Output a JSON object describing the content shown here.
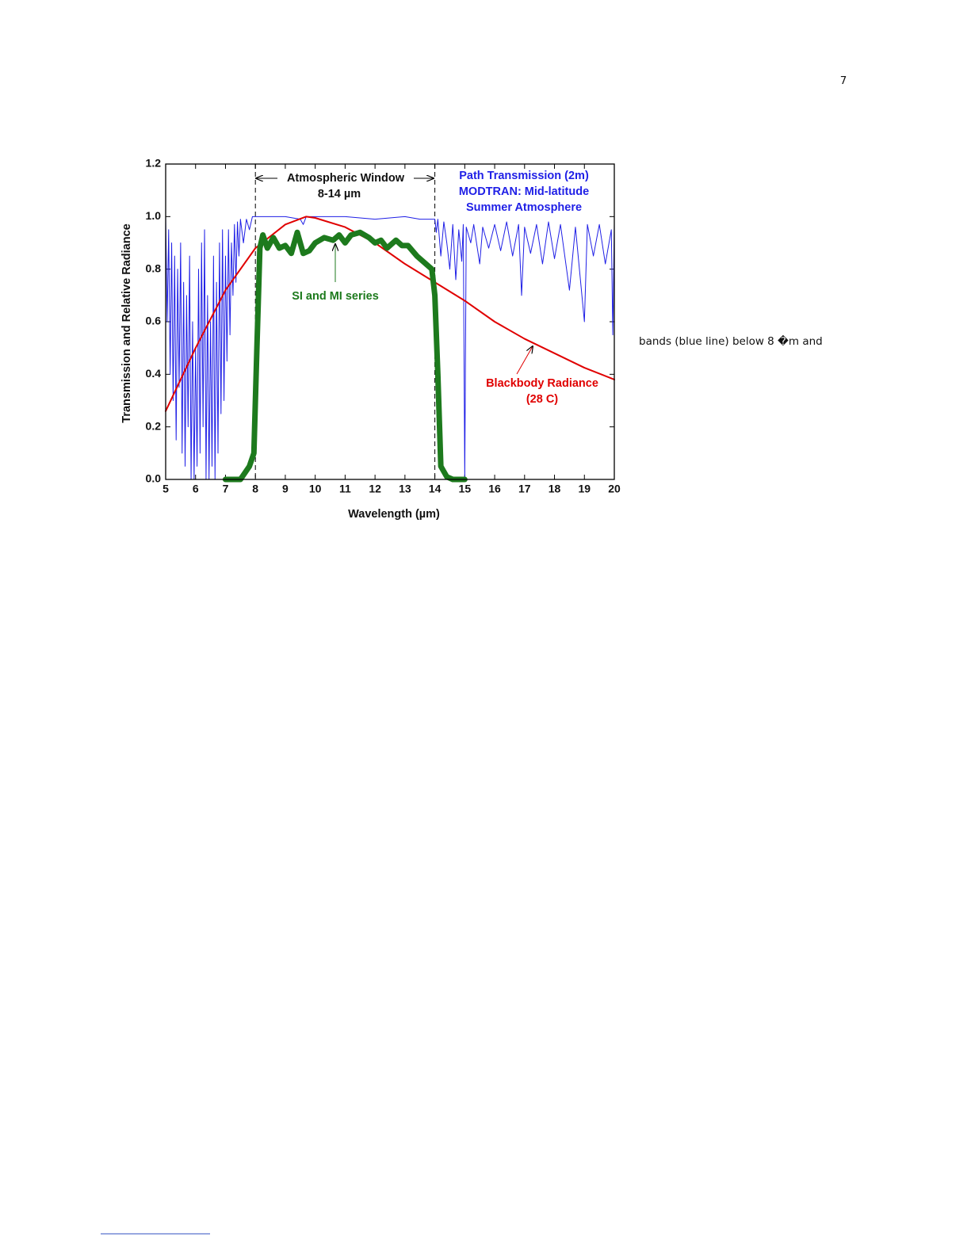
{
  "page_number": "7",
  "body_text": "bands (blue line) below 8 �m and",
  "chart_data": {
    "type": "line",
    "xlabel": "Wavelength (µm)",
    "ylabel": "Transmission and Relative Radiance",
    "annotations": [
      "Atmospheric Window",
      "8-14 µm",
      "Path Transmission (2m)",
      "MODTRAN: Mid-latitude",
      "Summer Atmosphere",
      "SI and MI series",
      "Blackbody Radiance",
      "(28 C)"
    ],
    "vlines": [
      8,
      14
    ],
    "xlim": [
      5,
      20
    ],
    "ylim": [
      0,
      1.2
    ],
    "xticks": [
      5,
      6,
      7,
      8,
      9,
      10,
      11,
      12,
      13,
      14,
      15,
      16,
      17,
      18,
      19,
      20
    ],
    "yticks": [
      {
        "value": 0,
        "label": "0.0"
      },
      0.2,
      0.4,
      0.6,
      0.8,
      {
        "value": 1,
        "label": "1.0"
      },
      1.2
    ],
    "grid": false,
    "series": [
      {
        "name": "Path Transmission (2m)",
        "color": "#1f1fe6",
        "width": 1,
        "x": [
          5.0,
          5.05,
          5.1,
          5.15,
          5.2,
          5.25,
          5.3,
          5.35,
          5.4,
          5.45,
          5.5,
          5.55,
          5.6,
          5.65,
          5.7,
          5.75,
          5.8,
          5.85,
          5.9,
          5.95,
          6.0,
          6.05,
          6.1,
          6.15,
          6.2,
          6.25,
          6.3,
          6.35,
          6.4,
          6.45,
          6.5,
          6.55,
          6.6,
          6.65,
          6.7,
          6.75,
          6.8,
          6.85,
          6.9,
          6.95,
          7.0,
          7.05,
          7.1,
          7.15,
          7.2,
          7.25,
          7.3,
          7.35,
          7.4,
          7.45,
          7.5,
          7.6,
          7.7,
          7.8,
          7.9,
          8.0,
          8.5,
          9.0,
          9.5,
          9.6,
          9.7,
          10,
          11,
          12,
          13,
          13.5,
          14.0,
          14.05,
          14.1,
          14.2,
          14.3,
          14.4,
          14.5,
          14.6,
          14.7,
          14.8,
          14.9,
          14.95,
          15.0,
          15.05,
          15.2,
          15.3,
          15.5,
          15.6,
          15.8,
          16.0,
          16.2,
          16.4,
          16.6,
          16.8,
          16.9,
          17.0,
          17.2,
          17.4,
          17.6,
          17.8,
          18.0,
          18.2,
          18.5,
          18.7,
          19.0,
          19.1,
          19.3,
          19.5,
          19.7,
          19.9,
          19.95,
          20.0
        ],
        "values": [
          1.0,
          0.6,
          0.95,
          0.4,
          0.9,
          0.3,
          0.85,
          0.15,
          0.8,
          0.35,
          0.9,
          0.1,
          0.75,
          0.05,
          0.7,
          0.2,
          0.85,
          0.0,
          0.6,
          0.0,
          0.5,
          0.05,
          0.8,
          0.1,
          0.9,
          0.2,
          0.95,
          0.0,
          0.7,
          0.0,
          0.6,
          0.05,
          0.85,
          0.0,
          0.75,
          0.1,
          0.9,
          0.25,
          0.95,
          0.3,
          0.85,
          0.45,
          0.95,
          0.55,
          0.9,
          0.7,
          0.97,
          0.75,
          0.98,
          0.85,
          0.99,
          0.9,
          0.99,
          0.95,
          1.0,
          1.0,
          1.0,
          1.0,
          0.99,
          0.97,
          1.0,
          1.0,
          1.0,
          0.99,
          1.0,
          0.99,
          0.99,
          0.94,
          0.99,
          0.85,
          0.98,
          0.9,
          0.8,
          0.97,
          0.76,
          0.95,
          0.83,
          0.97,
          0.0,
          0.96,
          0.9,
          0.97,
          0.82,
          0.96,
          0.88,
          0.97,
          0.87,
          0.98,
          0.85,
          0.97,
          0.7,
          0.96,
          0.86,
          0.97,
          0.82,
          0.98,
          0.84,
          0.97,
          0.72,
          0.96,
          0.6,
          0.97,
          0.85,
          0.97,
          0.82,
          0.95,
          0.55,
          0.97
        ]
      },
      {
        "name": "Blackbody Radiance",
        "color": "#e00000",
        "width": 2,
        "x": [
          5,
          6,
          7,
          8,
          9,
          9.7,
          10,
          11,
          12,
          13,
          14,
          15,
          16,
          17,
          18,
          19,
          20
        ],
        "values": [
          0.26,
          0.5,
          0.72,
          0.88,
          0.97,
          1.0,
          0.995,
          0.96,
          0.9,
          0.82,
          0.75,
          0.68,
          0.6,
          0.535,
          0.48,
          0.425,
          0.38
        ]
      },
      {
        "name": "SI and MI series",
        "color": "#1d7a1d",
        "width": 7,
        "x": [
          7,
          7.5,
          7.8,
          7.95,
          8.05,
          8.15,
          8.25,
          8.4,
          8.6,
          8.8,
          9.0,
          9.2,
          9.4,
          9.6,
          9.8,
          10,
          10.3,
          10.6,
          10.8,
          11,
          11.2,
          11.5,
          11.8,
          12,
          12.2,
          12.4,
          12.7,
          12.9,
          13.1,
          13.4,
          13.7,
          13.9,
          14.0,
          14.1,
          14.2,
          14.4,
          14.6,
          15
        ],
        "values": [
          0,
          0,
          0.05,
          0.1,
          0.5,
          0.88,
          0.93,
          0.88,
          0.92,
          0.88,
          0.89,
          0.86,
          0.94,
          0.86,
          0.87,
          0.9,
          0.92,
          0.91,
          0.93,
          0.9,
          0.93,
          0.94,
          0.92,
          0.9,
          0.91,
          0.88,
          0.91,
          0.89,
          0.89,
          0.85,
          0.82,
          0.8,
          0.7,
          0.4,
          0.05,
          0.01,
          0,
          0
        ]
      }
    ]
  }
}
